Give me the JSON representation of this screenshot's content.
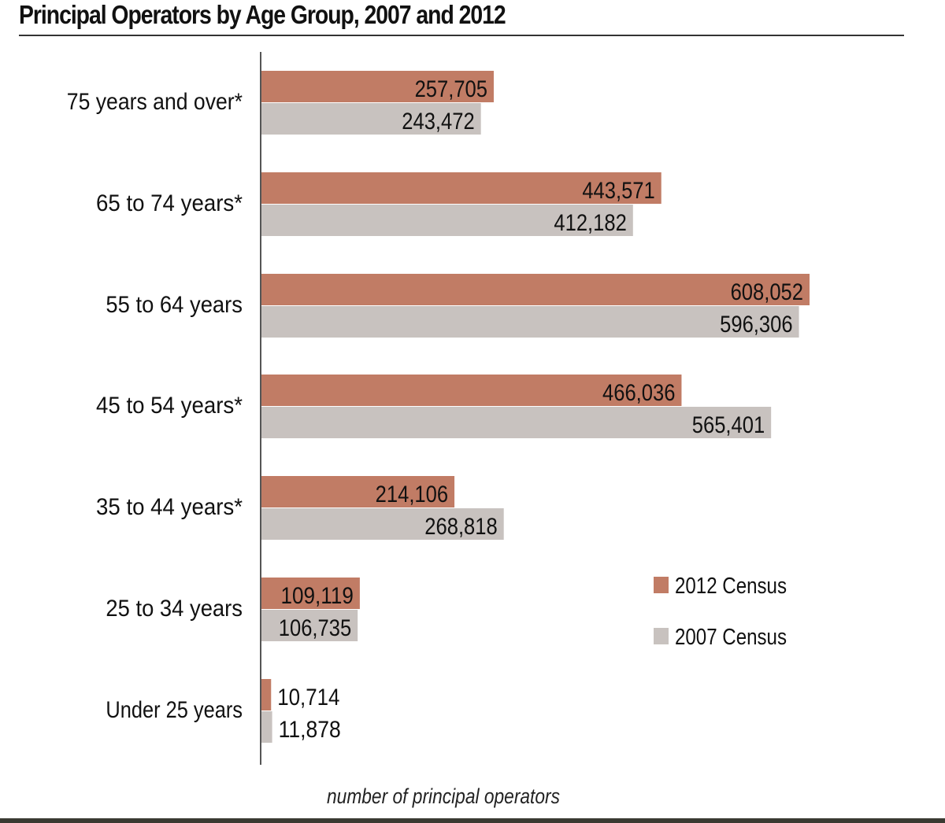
{
  "chart_data": {
    "type": "bar",
    "orientation": "horizontal",
    "title": "Principal Operators by Age Group, 2007 and 2012",
    "xlabel": "number of principal operators",
    "ylabel": "",
    "categories": [
      "75 years and over*",
      "65 to 74 years*",
      "55 to 64 years",
      "45 to 54 years*",
      "35 to 44 years*",
      "25 to 34 years",
      "Under 25 years"
    ],
    "series": [
      {
        "name": "2012 Census",
        "color": "#c17c65",
        "values": [
          257705,
          443571,
          608052,
          466036,
          214106,
          109119,
          10714
        ],
        "labels": [
          "257,705",
          "443,571",
          "608,052",
          "466,036",
          "214,106",
          "109,119",
          "10,714"
        ]
      },
      {
        "name": "2007 Census",
        "color": "#c8c2bf",
        "values": [
          243472,
          412182,
          596306,
          565401,
          268818,
          106735,
          11878
        ],
        "labels": [
          "243,472",
          "412,182",
          "596,306",
          "565,401",
          "268,818",
          "106,735",
          "11,878"
        ]
      }
    ],
    "xlim": [
      0,
      608052
    ],
    "grid": false,
    "legend_position": "right"
  }
}
